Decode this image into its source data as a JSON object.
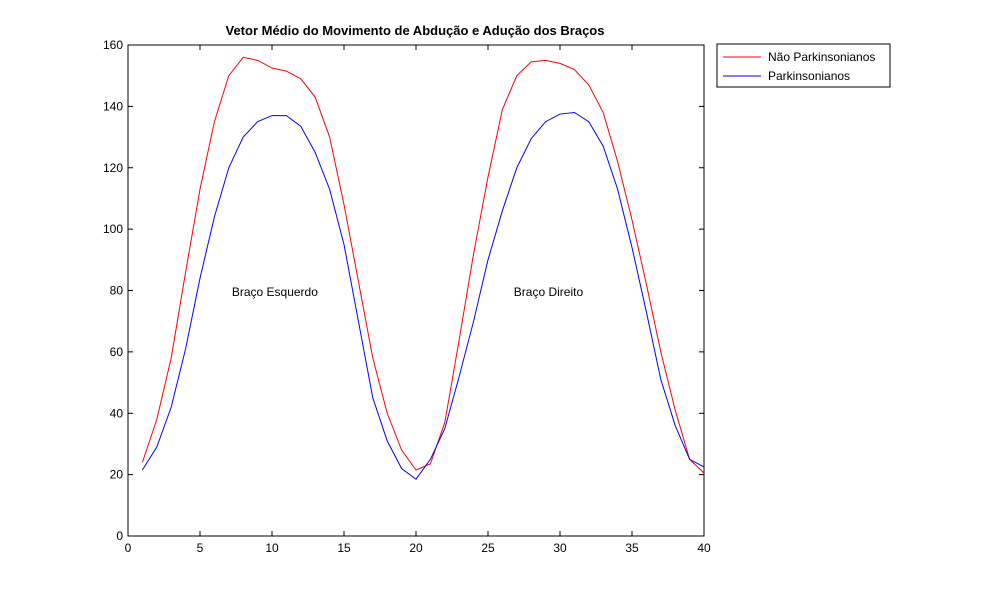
{
  "chart_data": {
    "type": "line",
    "title": "Vetor Médio do Movimento de Abdução e Adução dos Braços",
    "xlabel": "",
    "ylabel": "",
    "xlim": [
      0,
      40
    ],
    "ylim": [
      0,
      160
    ],
    "xticks": [
      0,
      5,
      10,
      15,
      20,
      25,
      30,
      35,
      40
    ],
    "yticks": [
      0,
      20,
      40,
      60,
      80,
      100,
      120,
      140,
      160
    ],
    "grid": false,
    "legend_position": "top-right",
    "x": [
      1,
      2,
      3,
      4,
      5,
      6,
      7,
      8,
      9,
      10,
      11,
      12,
      13,
      14,
      15,
      16,
      17,
      18,
      19,
      20,
      21,
      22,
      23,
      24,
      25,
      26,
      27,
      28,
      29,
      30,
      31,
      32,
      33,
      34,
      35,
      36,
      37,
      38,
      39,
      40
    ],
    "series": [
      {
        "name": "Não Parkinsonianos",
        "color": "#ff0000",
        "values": [
          24,
          38,
          58,
          86,
          113,
          135,
          150,
          156,
          155,
          152.5,
          151.5,
          149,
          143,
          130,
          108,
          83,
          58,
          40,
          28,
          21.5,
          23.5,
          37,
          64,
          92,
          117,
          139,
          150,
          154.5,
          155,
          154,
          152,
          147,
          138,
          122,
          103,
          82,
          60,
          41,
          25,
          20.5
        ]
      },
      {
        "name": "Parkinsonianos",
        "color": "#0000ff",
        "values": [
          21.5,
          29,
          42,
          61,
          84,
          104,
          120,
          130,
          135,
          137,
          137,
          133.5,
          125,
          113,
          95,
          70,
          45,
          31,
          22,
          18.5,
          25,
          35,
          52,
          70,
          90,
          106,
          120,
          129.5,
          135,
          137.5,
          138,
          135,
          127,
          113,
          94,
          73,
          51,
          36,
          25,
          22.5
        ]
      }
    ],
    "annotations": [
      {
        "text": "Braço Esquerdo",
        "x": 10.2,
        "y": 79.5
      },
      {
        "text": "Braço Direito",
        "x": 29.2,
        "y": 79.5
      }
    ]
  }
}
